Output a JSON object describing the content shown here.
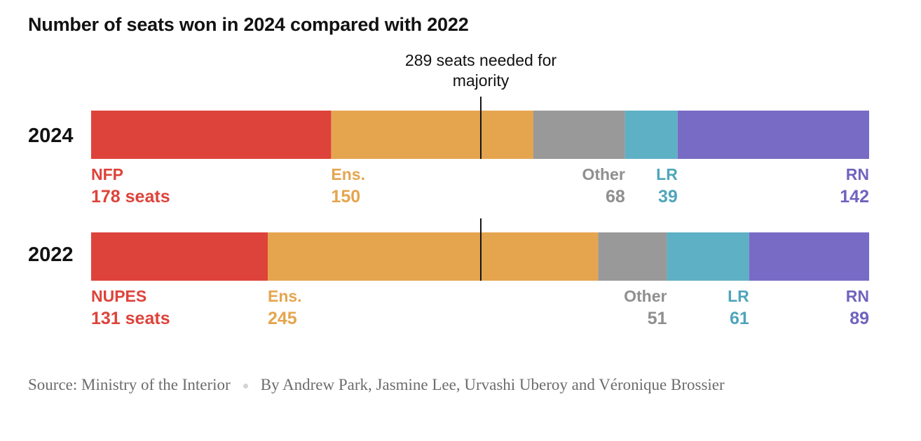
{
  "title": "Number of seats won in 2024 compared with 2022",
  "chart_data": {
    "type": "bar",
    "orientation": "horizontal-stacked",
    "title": "Number of seats won in 2024 compared with 2022",
    "total_seats": 577,
    "reference_line": {
      "value": 289,
      "label": "289 seats needed for majority",
      "label_lines": [
        "289 seats needed for",
        "majority"
      ]
    },
    "rows": [
      {
        "year": "2024",
        "segments": [
          {
            "party": "NFP",
            "seats": 178,
            "value_label": "178 seats",
            "color": "#dd433b",
            "align": "left"
          },
          {
            "party": "Ens.",
            "seats": 150,
            "value_label": "150",
            "color": "#e5a54f",
            "align": "left"
          },
          {
            "party": "Other",
            "seats": 68,
            "value_label": "68",
            "color": "#999999",
            "align": "right"
          },
          {
            "party": "LR",
            "seats": 39,
            "value_label": "39",
            "color": "#5eb0c4",
            "align": "right"
          },
          {
            "party": "RN",
            "seats": 142,
            "value_label": "142",
            "color": "#776bc5",
            "align": "right"
          }
        ]
      },
      {
        "year": "2022",
        "segments": [
          {
            "party": "NUPES",
            "seats": 131,
            "value_label": "131 seats",
            "color": "#dd433b",
            "align": "left"
          },
          {
            "party": "Ens.",
            "seats": 245,
            "value_label": "245",
            "color": "#e5a54f",
            "align": "left"
          },
          {
            "party": "Other",
            "seats": 51,
            "value_label": "51",
            "color": "#999999",
            "align": "right"
          },
          {
            "party": "LR",
            "seats": 61,
            "value_label": "61",
            "color": "#5eb0c4",
            "align": "right"
          },
          {
            "party": "RN",
            "seats": 89,
            "value_label": "89",
            "color": "#776bc5",
            "align": "right"
          }
        ]
      }
    ],
    "label_colors": {
      "Other": "#8f8f8f",
      "LR": "#4fa5bb",
      "RN": "#6f63bf"
    }
  },
  "footer": {
    "source": "Source: Ministry of the Interior",
    "byline": "By Andrew Park, Jasmine Lee, Urvashi Uberoy and Véronique Brossier"
  }
}
